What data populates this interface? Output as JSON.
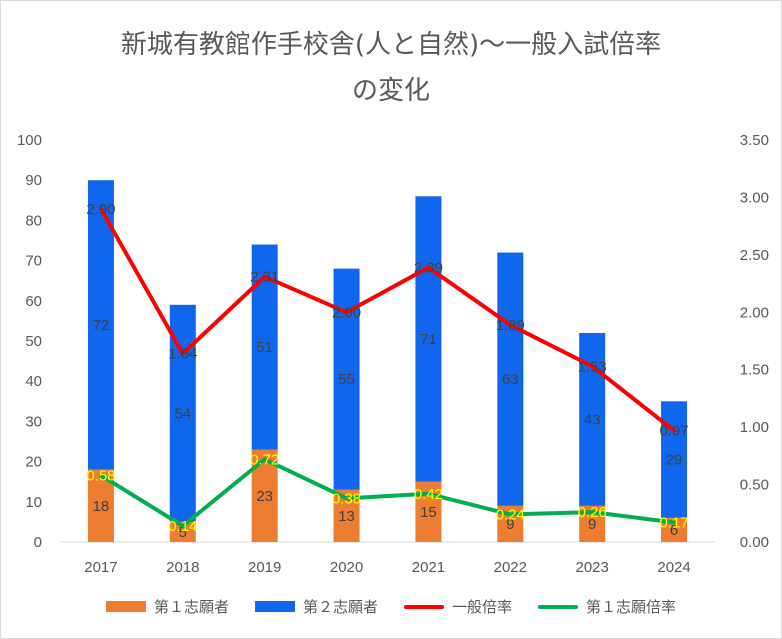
{
  "title_line1": "新城有教館作手校舎(人と自然)～一般入試倍率",
  "title_line2": "の変化",
  "legend": {
    "first_applicants": "第１志願者",
    "second_applicants": "第２志願者",
    "general_rate": "一般倍率",
    "first_rate": "第１志願倍率"
  },
  "colors": {
    "first_applicants": "#ED7D31",
    "second_applicants": "#1166EE",
    "general_rate": "#FF0000",
    "first_rate": "#00B050"
  },
  "chart_data": {
    "type": "bar",
    "stacked": true,
    "categories": [
      "2017",
      "2018",
      "2019",
      "2020",
      "2021",
      "2022",
      "2023",
      "2024"
    ],
    "series": [
      {
        "name": "第１志願者",
        "type": "bar",
        "axis": "left",
        "values": [
          18,
          5,
          23,
          13,
          15,
          9,
          9,
          6
        ],
        "labels": [
          "18",
          "5",
          "23",
          "13",
          "15",
          "9",
          "9",
          "6"
        ]
      },
      {
        "name": "第２志願者",
        "type": "bar",
        "axis": "left",
        "values": [
          72,
          54,
          51,
          55,
          71,
          63,
          43,
          29
        ],
        "labels": [
          "72",
          "54",
          "51",
          "55",
          "71",
          "63",
          "43",
          "29"
        ]
      },
      {
        "name": "一般倍率",
        "type": "line",
        "axis": "right",
        "values": [
          2.9,
          1.64,
          2.31,
          2.0,
          2.39,
          1.89,
          1.53,
          0.97
        ],
        "labels": [
          "2.90",
          "1.64",
          "2.31",
          "2.00",
          "2.39",
          "1.89",
          "1.53",
          "0.97"
        ]
      },
      {
        "name": "第１志願倍率",
        "type": "line",
        "axis": "right",
        "values": [
          0.58,
          0.14,
          0.72,
          0.38,
          0.42,
          0.24,
          0.26,
          0.17
        ],
        "labels": [
          "0.58",
          "0.14",
          "0.72",
          "0.38",
          "0.42",
          "0.24",
          "0.26",
          "0.17"
        ]
      }
    ],
    "y_left": {
      "min": 0,
      "max": 100,
      "ticks": [
        "0",
        "10",
        "20",
        "30",
        "40",
        "50",
        "60",
        "70",
        "80",
        "90",
        "100"
      ]
    },
    "y_right": {
      "min": 0,
      "max": 3.5,
      "ticks": [
        "0.00",
        "0.50",
        "1.00",
        "1.50",
        "2.00",
        "2.50",
        "3.00",
        "3.50"
      ]
    },
    "grid": false,
    "legend_position": "bottom"
  }
}
